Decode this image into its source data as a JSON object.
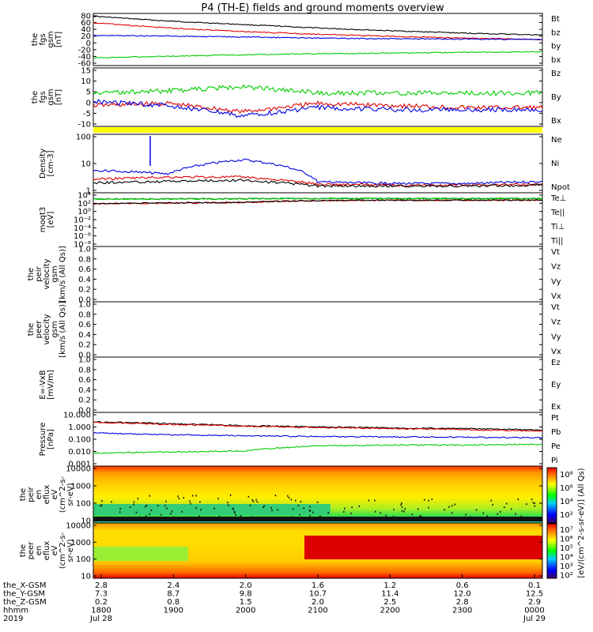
{
  "title": "P4 (TH-E) fields and ground moments overview",
  "colors": {
    "black": "#000000",
    "red": "#e00000",
    "green": "#00cc00",
    "blue": "#0000e0",
    "yellow": "#ffff00",
    "gray": "#888888"
  },
  "panels": [
    {
      "id": "fgs-gsm",
      "ylabel": [
        "the",
        "fgs",
        "gsm",
        "[nT]"
      ],
      "yticks": [
        "80",
        "60",
        "40",
        "20",
        "0",
        "-20",
        "-40",
        "-60"
      ],
      "legend": [
        {
          "text": "Bt",
          "color": "#000000"
        },
        {
          "text": "bz",
          "color": "#e00000"
        },
        {
          "text": "by",
          "color": "#00cc00"
        },
        {
          "text": "bx",
          "color": "#0000e0"
        }
      ]
    },
    {
      "id": "fgs-dsl",
      "ylabel": [
        "the",
        "fgs",
        "gsm",
        "[nT]"
      ],
      "yticks": [
        "15",
        "10",
        "5",
        "0",
        "-5",
        "-10"
      ],
      "legend": [
        {
          "text": "Bz",
          "color": "#e00000"
        },
        {
          "text": "By",
          "color": "#00cc00"
        },
        {
          "text": "Bx",
          "color": "#0000e0"
        }
      ]
    },
    {
      "id": "density",
      "ylabel": [
        "Density",
        "[cm-3]"
      ],
      "yticks": [
        "100",
        "10",
        "1"
      ],
      "legend": [
        {
          "text": "Ne",
          "color": "#e00000"
        },
        {
          "text": "Ni",
          "color": "#000000"
        },
        {
          "text": "Npot",
          "color": "#0000e0"
        }
      ]
    },
    {
      "id": "temperature",
      "ylabel": [
        "moqt3",
        "[eV]"
      ],
      "yticks": [
        "10⁴",
        "10²",
        "10⁰",
        "10⁻²",
        "10⁻⁴",
        "10⁻⁶",
        "10⁻⁸"
      ],
      "legend": [
        {
          "text": "Te⊥",
          "color": "#e00000"
        },
        {
          "text": "Te||",
          "color": "#000000"
        },
        {
          "text": "Ti⊥",
          "color": "#00cc00"
        },
        {
          "text": "Ti||",
          "color": "#00cc00"
        }
      ]
    },
    {
      "id": "peir-velocity",
      "ylabel": [
        "the",
        "peir",
        "velocity",
        "gsm",
        "[km/s (All Qs)]"
      ],
      "yticks": [
        "1.0",
        "0.8",
        "0.6",
        "0.4",
        "0.2",
        "0.0"
      ],
      "legend": [
        {
          "text": "Vt",
          "color": "#000000"
        },
        {
          "text": "Vz",
          "color": "#e00000"
        },
        {
          "text": "Vy",
          "color": "#00cc00"
        },
        {
          "text": "Vx",
          "color": "#0000e0"
        }
      ]
    },
    {
      "id": "peer-velocity",
      "ylabel": [
        "the",
        "peer",
        "velocity",
        "gsm",
        "[km/s (All Qs)]"
      ],
      "yticks": [
        "1.0",
        "0.8",
        "0.6",
        "0.4",
        "0.2",
        "0.0"
      ],
      "legend": [
        {
          "text": "Vt",
          "color": "#000000"
        },
        {
          "text": "Vz",
          "color": "#e00000"
        },
        {
          "text": "Vy",
          "color": "#00cc00"
        },
        {
          "text": "Vx",
          "color": "#0000e0"
        }
      ]
    },
    {
      "id": "efield",
      "ylabel": [
        "E=-VxB",
        "[mV/m]"
      ],
      "yticks": [
        "1.0",
        "0.8",
        "0.6",
        "0.4",
        "0.2",
        "0.0"
      ],
      "legend": [
        {
          "text": "Ez",
          "color": "#e00000"
        },
        {
          "text": "Ey",
          "color": "#00cc00"
        },
        {
          "text": "Ex",
          "color": "#0000e0"
        }
      ]
    },
    {
      "id": "pressure",
      "ylabel": [
        "Pressure",
        "[nPa]"
      ],
      "yticks": [
        "10.000",
        "1.000",
        "0.100",
        "0.010",
        "0.001"
      ],
      "legend": [
        {
          "text": "Pt",
          "color": "#000000"
        },
        {
          "text": "Pb",
          "color": "#e00000"
        },
        {
          "text": "Pe",
          "color": "#00cc00"
        },
        {
          "text": "Pi",
          "color": "#0000e0"
        }
      ]
    },
    {
      "id": "peir-eflux",
      "ylabel": [
        "the",
        "peir",
        "en",
        "eflux",
        "eV",
        "(cm^2-s-",
        "sr-eV)"
      ],
      "yticks": [
        "10000",
        "1000",
        "100",
        "10"
      ]
    },
    {
      "id": "peer-eflux",
      "ylabel": [
        "the",
        "peer",
        "en",
        "eflux",
        "eV",
        "(cm^2-s-",
        "sr-eV)"
      ],
      "yticks": [
        "10000",
        "1000",
        "100",
        "10"
      ]
    }
  ],
  "colorbar": {
    "label": "[eV/(cm^2-s-sr-eV)] (All Qs)",
    "ticks_upper": [
      "10⁸",
      "10⁶",
      "10⁴",
      "10²"
    ],
    "ticks_lower": [
      "10⁷",
      "10⁶",
      "10⁵",
      "10⁴",
      "10³",
      "10²"
    ]
  },
  "xaxis": {
    "rows": [
      {
        "label": "the_X-GSM",
        "values": [
          "2.8",
          "2.4",
          "2.0",
          "1.6",
          "1.2",
          "0.6",
          "0.1"
        ]
      },
      {
        "label": "the_Y-GSM",
        "values": [
          "7.3",
          "8.7",
          "9.8",
          "10.7",
          "11.4",
          "12.0",
          "12.5"
        ]
      },
      {
        "label": "the_Z-GSM",
        "values": [
          "0.2",
          "0.8",
          "1.5",
          "2.0",
          "2.5",
          "2.8",
          "2.9"
        ]
      },
      {
        "label": "hhmm",
        "values": [
          "1800",
          "1900",
          "2000",
          "2100",
          "2200",
          "2300",
          "0000"
        ]
      },
      {
        "label": "2019",
        "values": [
          "Jul 28",
          "",
          "",
          "",
          "",
          "",
          "Jul 29"
        ]
      }
    ]
  },
  "chart_data": [
    {
      "type": "line",
      "title": "P4 (TH-E) fields and ground moments overview",
      "x": [
        "1800",
        "1900",
        "2000",
        "2100",
        "2200",
        "2300",
        "0000"
      ],
      "ylim": [
        -60,
        90
      ],
      "series": [
        {
          "name": "Bt",
          "values": [
            82,
            68,
            58,
            48,
            40,
            33,
            28
          ]
        },
        {
          "name": "bz",
          "values": [
            63,
            48,
            38,
            30,
            24,
            19,
            15
          ]
        },
        {
          "name": "by",
          "values": [
            -38,
            -33,
            -29,
            -26,
            -24,
            -22,
            -20
          ]
        },
        {
          "name": "bx",
          "values": [
            27,
            25,
            22,
            19,
            17,
            16,
            15
          ]
        }
      ]
    },
    {
      "type": "line",
      "ylim": [
        -12,
        16
      ],
      "x": [
        "1800",
        "1900",
        "2000",
        "2100",
        "2200",
        "2300",
        "0000"
      ],
      "series": [
        {
          "name": "Bz",
          "values": [
            -2,
            -1,
            -5,
            -1,
            -2,
            -3,
            -3
          ]
        },
        {
          "name": "By",
          "values": [
            4,
            5,
            7,
            4,
            4,
            4,
            4
          ]
        },
        {
          "name": "Bx",
          "values": [
            0,
            -2,
            -7,
            -3,
            -4,
            -4,
            -4
          ]
        }
      ]
    },
    {
      "type": "line",
      "log": true,
      "ylim": [
        1,
        200
      ],
      "x": [
        "1800",
        "1900",
        "2000",
        "2100",
        "2200",
        "2300",
        "0000"
      ],
      "series": [
        {
          "name": "Ne",
          "values": [
            2.0,
            2.5,
            2.5,
            1.2,
            1.1,
            1.1,
            1.2
          ]
        },
        {
          "name": "Ni",
          "values": [
            1.4,
            1.6,
            1.8,
            1.0,
            1.0,
            1.0,
            1.1
          ]
        },
        {
          "name": "Npot",
          "values": [
            5,
            3.5,
            15,
            1.5,
            1.3,
            1.3,
            1.6
          ]
        }
      ]
    },
    {
      "type": "line",
      "log": true,
      "ylim": [
        1e-08,
        10000.0
      ],
      "x": [
        "1800",
        "1900",
        "2000",
        "2100",
        "2200",
        "2300",
        "0000"
      ],
      "series": [
        {
          "name": "Te⊥",
          "values": [
            200,
            300,
            400,
            1200,
            1500,
            1500,
            1500
          ]
        },
        {
          "name": "Te||",
          "values": [
            250,
            350,
            450,
            1300,
            1600,
            1600,
            1600
          ]
        },
        {
          "name": "Ti⊥",
          "values": [
            3000,
            3000,
            3500,
            4000,
            4000,
            4000,
            4000
          ]
        },
        {
          "name": "Ti||",
          "values": [
            3200,
            3200,
            3600,
            4200,
            4200,
            4200,
            4200
          ]
        }
      ]
    },
    {
      "type": "line",
      "log": true,
      "ylim": [
        0.001,
        10
      ],
      "x": [
        "1800",
        "1900",
        "2000",
        "2100",
        "2200",
        "2300",
        "0000"
      ],
      "series": [
        {
          "name": "Pt",
          "values": [
            2.2,
            1.6,
            1.1,
            0.9,
            0.75,
            0.65,
            0.5
          ]
        },
        {
          "name": "Pb",
          "values": [
            2.0,
            1.4,
            1.0,
            0.8,
            0.65,
            0.55,
            0.4
          ]
        },
        {
          "name": "Pe",
          "values": [
            0.008,
            0.01,
            0.012,
            0.03,
            0.035,
            0.035,
            0.04
          ]
        },
        {
          "name": "Pi",
          "values": [
            0.3,
            0.22,
            0.18,
            0.16,
            0.15,
            0.14,
            0.13
          ]
        }
      ]
    },
    {
      "type": "heatmap",
      "log": true,
      "ylim": [
        5,
        20000
      ],
      "x": [
        "1800",
        "1900",
        "2000",
        "2100",
        "2200",
        "2300",
        "0000"
      ]
    },
    {
      "type": "heatmap",
      "log": true,
      "ylim": [
        5,
        20000
      ],
      "x": [
        "1800",
        "1900",
        "2000",
        "2100",
        "2200",
        "2300",
        "0000"
      ]
    }
  ]
}
